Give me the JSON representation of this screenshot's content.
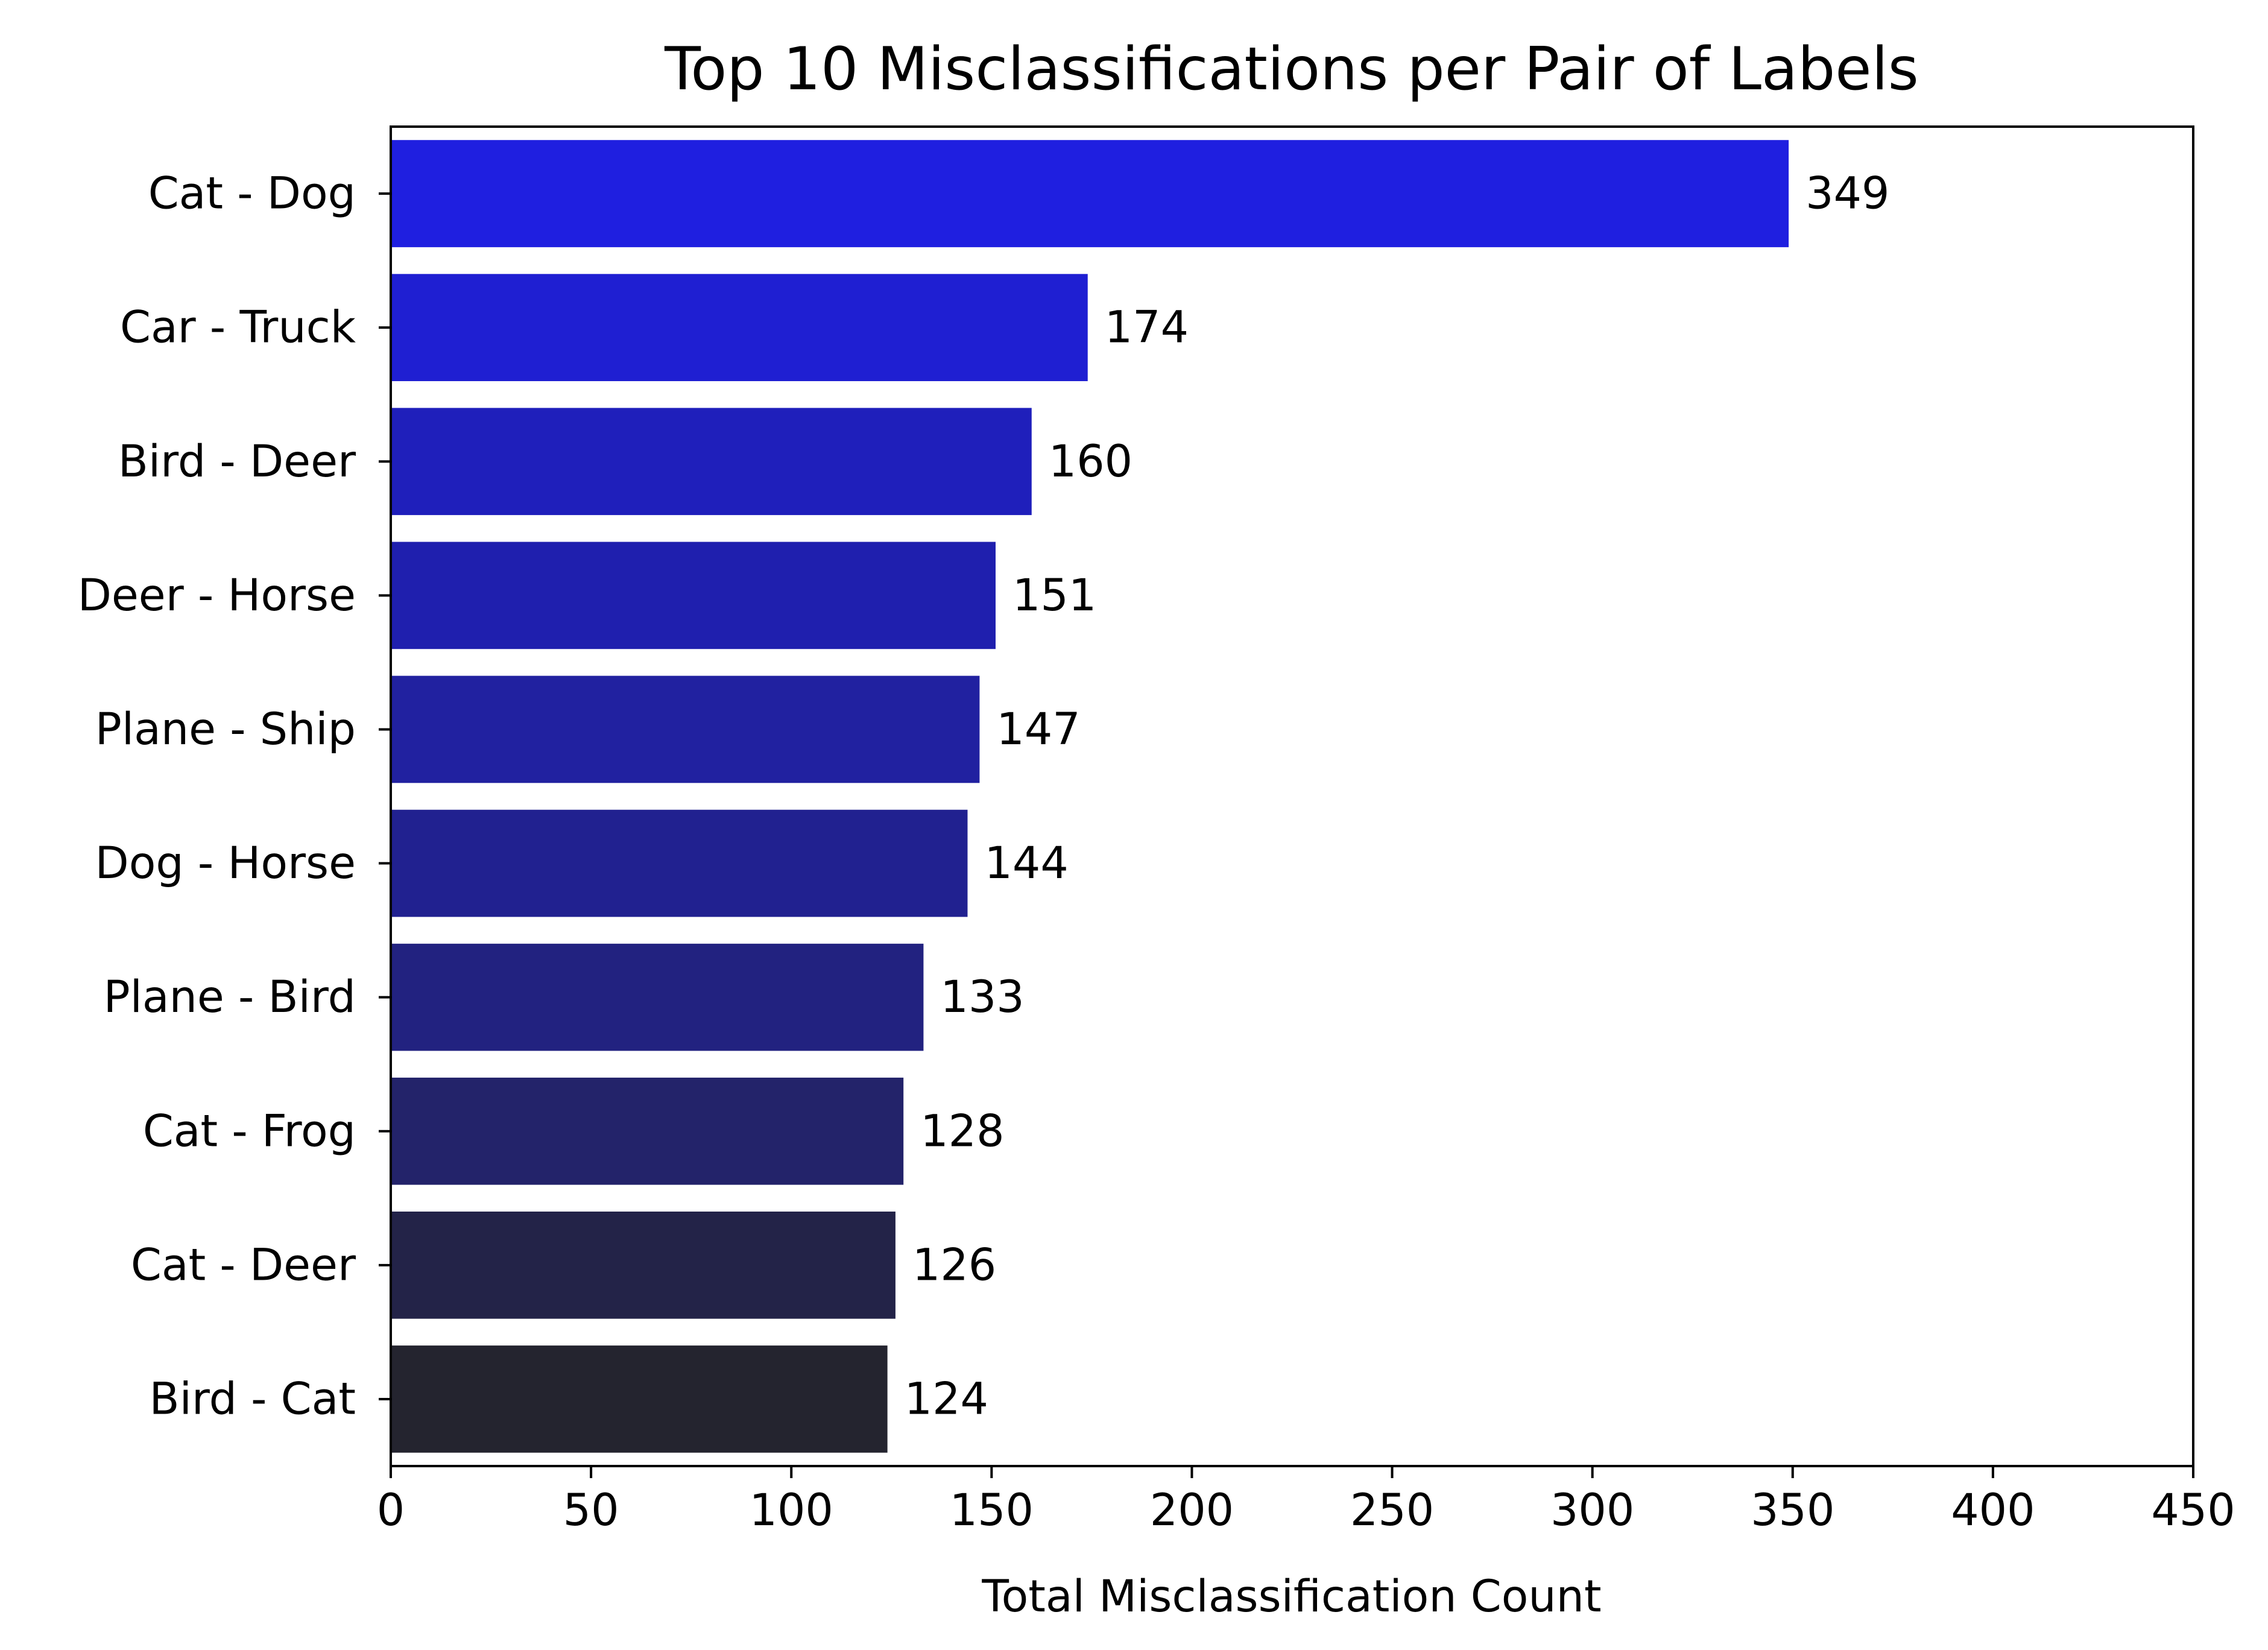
{
  "chart_data": {
    "type": "bar",
    "orientation": "horizontal",
    "title": "Top 10 Misclassifications per Pair of Labels",
    "xlabel": "Total Misclassification Count",
    "ylabel": "",
    "xlim": [
      0,
      450
    ],
    "xticks": [
      "0",
      "50",
      "100",
      "150",
      "200",
      "250",
      "300",
      "350",
      "400",
      "450"
    ],
    "grid": false,
    "categories": [
      "Cat - Dog",
      "Car - Truck",
      "Bird - Deer",
      "Deer - Horse",
      "Plane - Ship",
      "Dog - Horse",
      "Plane - Bird",
      "Cat - Frog",
      "Cat - Deer",
      "Bird - Cat"
    ],
    "values": [
      349,
      174,
      160,
      151,
      147,
      144,
      133,
      128,
      126,
      124
    ],
    "value_labels": [
      "349",
      "174",
      "160",
      "151",
      "147",
      "144",
      "133",
      "128",
      "126",
      "124"
    ],
    "colors": [
      "#1f1fe0",
      "#1f1fd2",
      "#1f1fbb",
      "#1f1fae",
      "#2121a0",
      "#212190",
      "#222280",
      "#23236a",
      "#232348",
      "#24242f"
    ]
  }
}
